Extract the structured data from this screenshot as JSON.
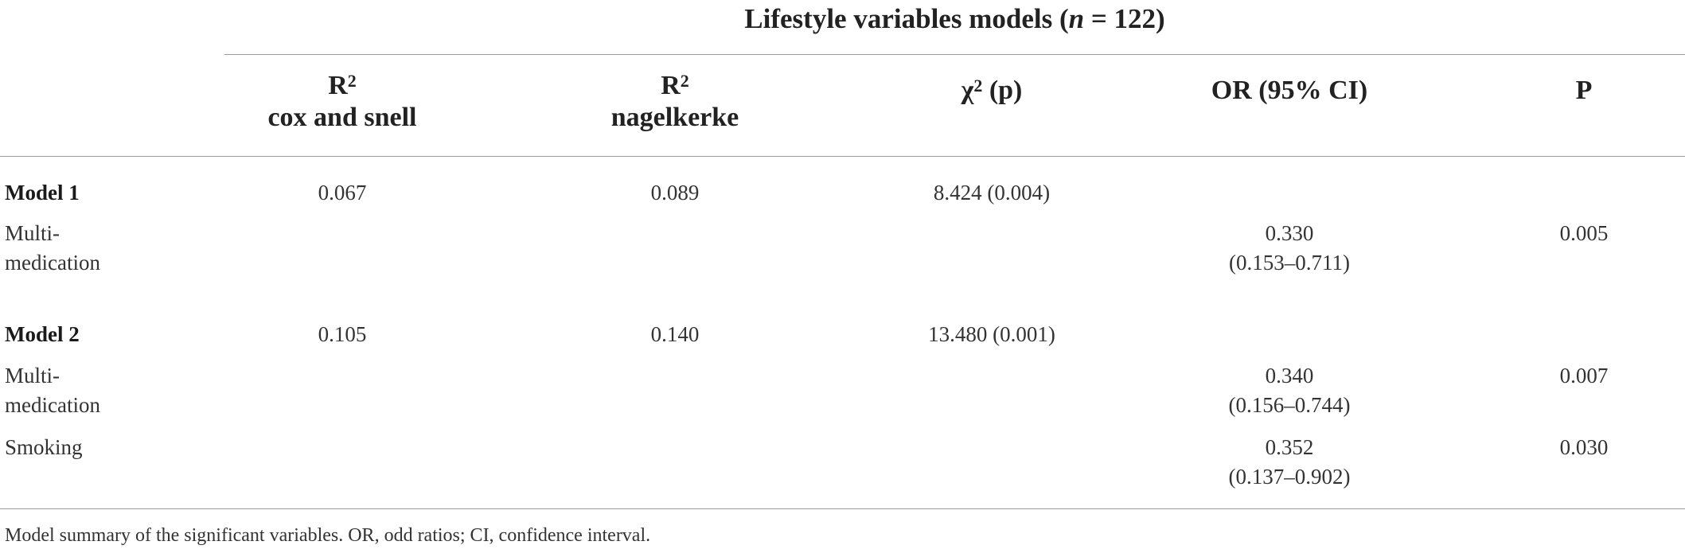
{
  "title": {
    "text": "Lifestyle variables models (",
    "n_symbol": "n",
    "n_value": " = 122)"
  },
  "columns": {
    "r2cs": {
      "symbol": "R",
      "sup": "2",
      "sub": "cox and snell"
    },
    "r2nk": {
      "symbol": "R",
      "sup": "2",
      "sub": "nagelkerke"
    },
    "chi": {
      "symbol": "χ",
      "sup": "2",
      "suffix": " (p)"
    },
    "or": {
      "label": "OR (95% CI)"
    },
    "p": {
      "label": "P"
    }
  },
  "rows": [
    {
      "label": "Model 1",
      "r2cs": "0.067",
      "r2nk": "0.089",
      "chi": "8.424 (0.004)"
    },
    {
      "label_line1": "Multi-",
      "label_line2": "medication",
      "or_line1": "0.330",
      "or_line2": "(0.153–0.711)",
      "p": "0.005"
    },
    {
      "label": "Model 2",
      "r2cs": "0.105",
      "r2nk": "0.140",
      "chi": "13.480 (0.001)"
    },
    {
      "label_line1": "Multi-",
      "label_line2": "medication",
      "or_line1": "0.340",
      "or_line2": "(0.156–0.744)",
      "p": "0.007"
    },
    {
      "label": "Smoking",
      "or_line1": "0.352",
      "or_line2": "(0.137–0.902)",
      "p": "0.030"
    }
  ],
  "footnote": "Model summary of the significant variables. OR, odd ratios; CI, confidence interval."
}
